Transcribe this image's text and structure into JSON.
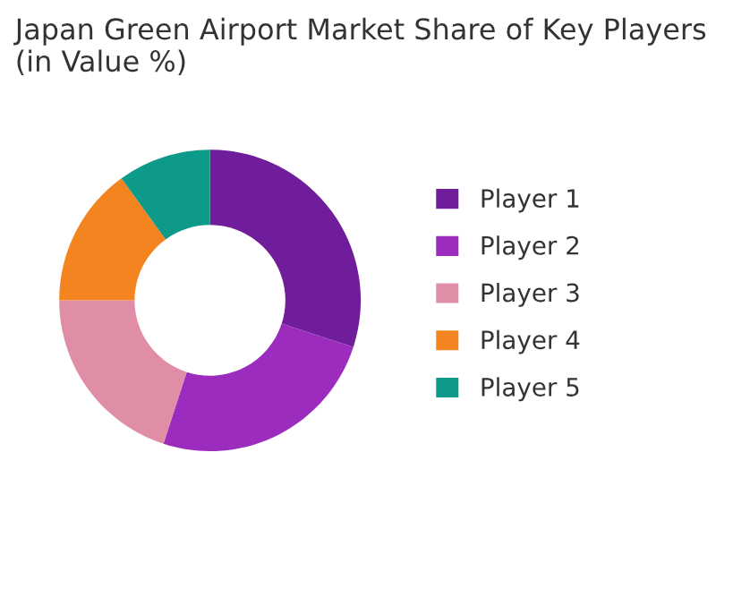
{
  "chart_data": {
    "type": "donut",
    "title": "Japan Green Airport Market Share of Key Players (in Value %)",
    "categories": [
      "Player 1",
      "Player 2",
      "Player 3",
      "Player 4",
      "Player 5"
    ],
    "values": [
      30,
      25,
      20,
      15,
      10
    ],
    "colors": [
      "#6f1d9b",
      "#9b2cbd",
      "#df8ea6",
      "#f4841f",
      "#0e9a88"
    ],
    "legend": "right"
  }
}
